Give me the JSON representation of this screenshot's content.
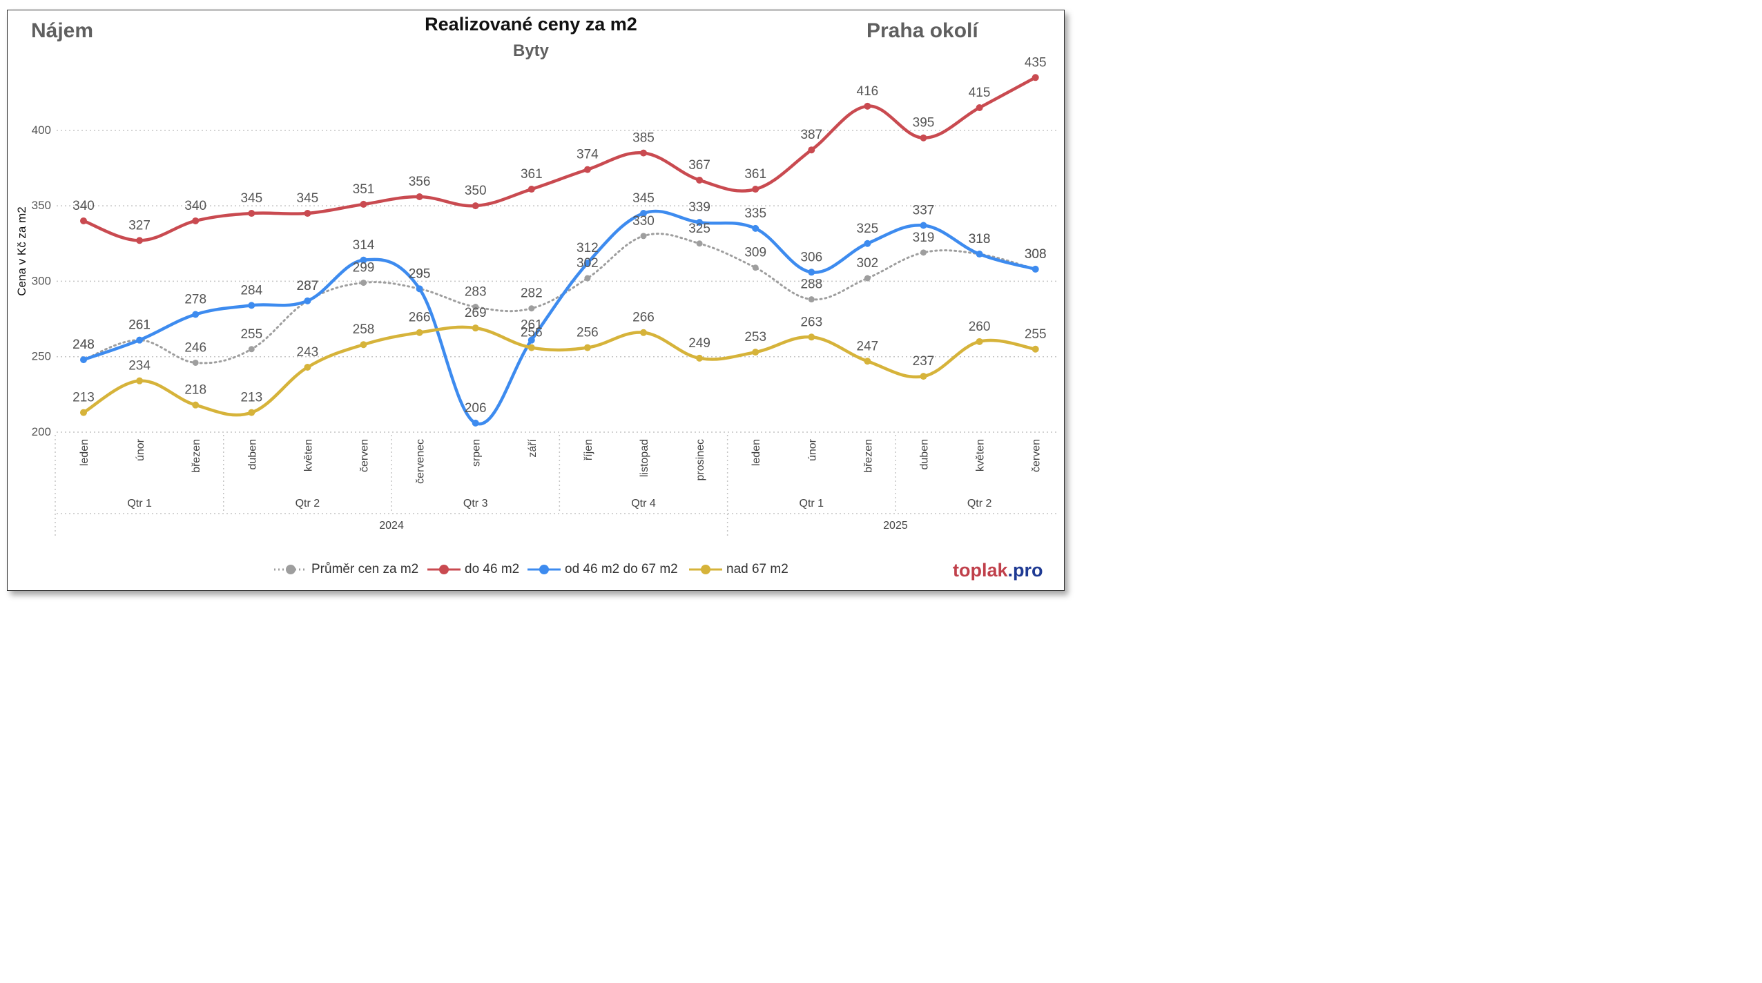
{
  "header": {
    "left_label": "Nájem",
    "right_label": "Praha okolí",
    "brand_part1": "toplak",
    "brand_part2": ".pro"
  },
  "chart_data": {
    "type": "line",
    "title": "Realizované ceny za m2",
    "subtitle": "Byty",
    "ylabel": "Cena v Kč za m2",
    "xlabel": "",
    "ylim": [
      200,
      435
    ],
    "yticks": [
      200,
      250,
      300,
      350,
      400
    ],
    "grid": true,
    "legend_position": "bottom",
    "categories": [
      "leden",
      "únor",
      "březen",
      "duben",
      "květen",
      "červen",
      "červenec",
      "srpen",
      "září",
      "říjen",
      "listopad",
      "prosinec",
      "leden",
      "únor",
      "březen",
      "duben",
      "květen",
      "červen"
    ],
    "quarters": [
      {
        "label": "Qtr 1",
        "start": 0,
        "end": 2
      },
      {
        "label": "Qtr 2",
        "start": 3,
        "end": 5
      },
      {
        "label": "Qtr 3",
        "start": 6,
        "end": 8
      },
      {
        "label": "Qtr 4",
        "start": 9,
        "end": 11
      },
      {
        "label": "Qtr 1",
        "start": 12,
        "end": 14
      },
      {
        "label": "Qtr 2",
        "start": 15,
        "end": 17
      }
    ],
    "years": [
      {
        "label": "2024",
        "start": 0,
        "end": 11
      },
      {
        "label": "2025",
        "start": 12,
        "end": 17
      }
    ],
    "series": [
      {
        "name": "Průměr cen za m2",
        "color": "#9e9e9e",
        "dashed": true,
        "values": [
          248,
          261,
          246,
          255,
          287,
          299,
          295,
          283,
          282,
          302,
          330,
          325,
          309,
          288,
          302,
          319,
          318,
          308
        ]
      },
      {
        "name": "do 46 m2",
        "color": "#c94a50",
        "dashed": false,
        "values": [
          340,
          327,
          340,
          345,
          345,
          351,
          356,
          350,
          361,
          374,
          385,
          367,
          361,
          387,
          416,
          395,
          415,
          435
        ]
      },
      {
        "name": "od 46 m2 do 67 m2",
        "color": "#3d8bef",
        "dashed": false,
        "values": [
          248,
          261,
          278,
          284,
          287,
          314,
          295,
          206,
          261,
          312,
          345,
          339,
          335,
          306,
          325,
          337,
          318,
          308
        ]
      },
      {
        "name": "nad 67 m2",
        "color": "#d6b33a",
        "dashed": false,
        "values": [
          213,
          234,
          218,
          213,
          243,
          258,
          266,
          269,
          256,
          256,
          266,
          249,
          253,
          263,
          247,
          237,
          260,
          255
        ]
      }
    ]
  }
}
